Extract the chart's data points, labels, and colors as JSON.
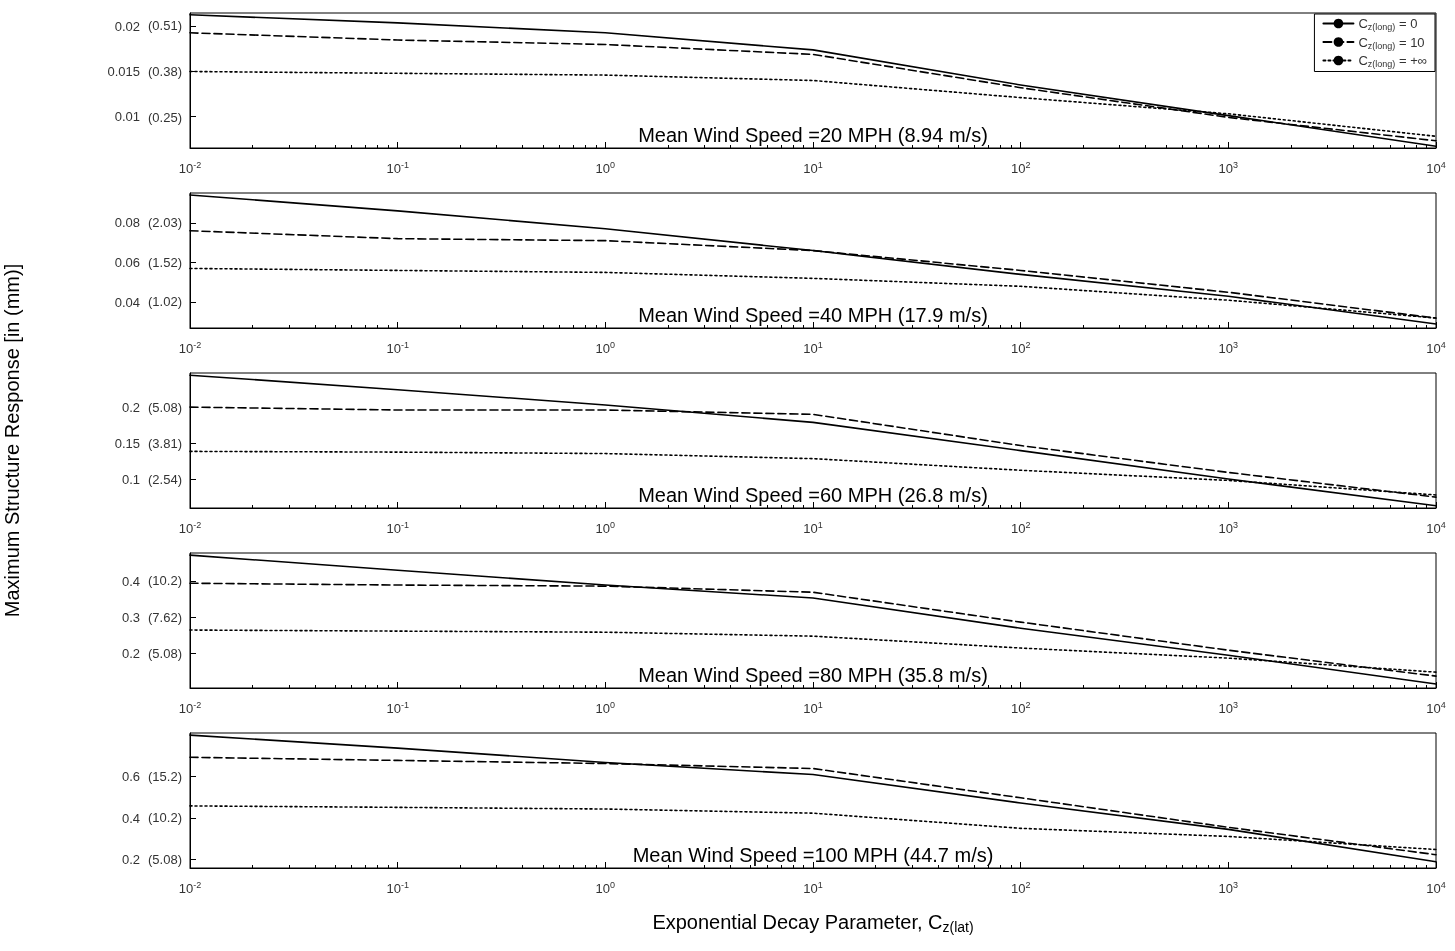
{
  "chart_data": [
    {
      "type": "line",
      "x": [
        0.01,
        0.1,
        1,
        10,
        100,
        1000,
        10000
      ],
      "xlim": [
        0.01,
        10000
      ],
      "xticks": [
        {
          "value": 0.01,
          "label": "10$^{-2}$"
        },
        {
          "value": 0.1,
          "label": "10$^{-1}$"
        },
        {
          "value": 1,
          "label": "10$^{0}$"
        },
        {
          "value": 10,
          "label": "10$^{1}$"
        },
        {
          "value": 100,
          "label": "10$^{2}$"
        },
        {
          "value": 1000,
          "label": "10$^{3}$"
        },
        {
          "value": 10000,
          "label": "10$^{4}$"
        }
      ],
      "log": "x",
      "ylim": [
        0.0065,
        0.0215
      ],
      "yticks": [
        0.01,
        0.015,
        0.02
      ],
      "y2lim": [
        0.165,
        0.546
      ],
      "y2ticks": [
        {
          "value": 0.25,
          "label": "(0.25)"
        },
        {
          "value": 0.38,
          "label": "(0.38)"
        },
        {
          "value": 0.51,
          "label": "(0.51)"
        }
      ],
      "grid": false,
      "marker": "none",
      "legend": "top right",
      "annotations": [
        "Mean Wind Speed =20 MPH (8.94 m/s)"
      ],
      "series": [
        {
          "name": "C$_{z(long)}$ = 0",
          "color": "#000000",
          "line_style": "solid",
          "values": [
            0.0213,
            0.0204,
            0.0193,
            0.0174,
            0.0135,
            0.0101,
            0.0067
          ]
        },
        {
          "name": "C$_{z(long)}$ = 10",
          "color": "#000000",
          "line_style": "dashed",
          "values": [
            0.0193,
            0.0185,
            0.018,
            0.0169,
            0.0132,
            0.0099,
            0.0073
          ]
        },
        {
          "name": "C$_{z(long)}$ = +∞",
          "color": "#000000",
          "line_style": "dotted",
          "values": [
            0.015,
            0.0148,
            0.0146,
            0.014,
            0.0121,
            0.0103,
            0.0078
          ]
        }
      ]
    },
    {
      "type": "line",
      "x": [
        0.01,
        0.1,
        1,
        10,
        100,
        1000,
        10000
      ],
      "xlim": [
        0.01,
        10000
      ],
      "xticks": [
        {
          "value": 0.01,
          "label": "10$^{-2}$"
        },
        {
          "value": 0.1,
          "label": "10$^{-1}$"
        },
        {
          "value": 1,
          "label": "10$^{0}$"
        },
        {
          "value": 10,
          "label": "10$^{1}$"
        },
        {
          "value": 100,
          "label": "10$^{2}$"
        },
        {
          "value": 1000,
          "label": "10$^{3}$"
        },
        {
          "value": 10000,
          "label": "10$^{4}$"
        }
      ],
      "log": "x",
      "ylim": [
        0.027,
        0.095
      ],
      "yticks": [
        0.04,
        0.06,
        0.08
      ],
      "y2lim": [
        0.686,
        2.413
      ],
      "y2ticks": [
        {
          "value": 1.02,
          "label": "(1.02)"
        },
        {
          "value": 1.52,
          "label": "(1.52)"
        },
        {
          "value": 2.03,
          "label": "(2.03)"
        }
      ],
      "grid": false,
      "marker": "none",
      "annotations": [
        "Mean Wind Speed =40 MPH (17.9 m/s)"
      ],
      "series": [
        {
          "color": "#000000",
          "line_style": "solid",
          "values": [
            0.094,
            0.086,
            0.077,
            0.066,
            0.054,
            0.043,
            0.029
          ]
        },
        {
          "color": "#000000",
          "line_style": "dashed",
          "values": [
            0.076,
            0.072,
            0.071,
            0.066,
            0.056,
            0.045,
            0.032
          ]
        },
        {
          "color": "#000000",
          "line_style": "dotted",
          "values": [
            0.057,
            0.056,
            0.055,
            0.052,
            0.048,
            0.041,
            0.032
          ]
        }
      ]
    },
    {
      "type": "line",
      "x": [
        0.01,
        0.1,
        1,
        10,
        100,
        1000,
        10000
      ],
      "xlim": [
        0.01,
        10000
      ],
      "xticks": [
        {
          "value": 0.01,
          "label": "10$^{-2}$"
        },
        {
          "value": 0.1,
          "label": "10$^{-1}$"
        },
        {
          "value": 1,
          "label": "10$^{0}$"
        },
        {
          "value": 10,
          "label": "10$^{1}$"
        },
        {
          "value": 100,
          "label": "10$^{2}$"
        },
        {
          "value": 1000,
          "label": "10$^{3}$"
        },
        {
          "value": 10000,
          "label": "10$^{4}$"
        }
      ],
      "log": "x",
      "ylim": [
        0.061,
        0.247
      ],
      "yticks": [
        0.1,
        0.15,
        0.2
      ],
      "y2lim": [
        1.549,
        6.274
      ],
      "y2ticks": [
        {
          "value": 2.54,
          "label": "(2.54)"
        },
        {
          "value": 3.81,
          "label": "(3.81)"
        },
        {
          "value": 5.08,
          "label": "(5.08)"
        }
      ],
      "grid": false,
      "marker": "none",
      "ylabel": "Maximum Structure Response [in (mm)]",
      "annotations": [
        "Mean Wind Speed =60 MPH (26.8 m/s)"
      ],
      "series": [
        {
          "color": "#000000",
          "line_style": "solid",
          "values": [
            0.244,
            0.224,
            0.203,
            0.179,
            0.14,
            0.101,
            0.064
          ]
        },
        {
          "color": "#000000",
          "line_style": "dashed",
          "values": [
            0.2,
            0.196,
            0.196,
            0.19,
            0.147,
            0.11,
            0.076
          ]
        },
        {
          "color": "#000000",
          "line_style": "dotted",
          "values": [
            0.139,
            0.138,
            0.136,
            0.129,
            0.113,
            0.099,
            0.079
          ]
        }
      ]
    },
    {
      "type": "line",
      "x": [
        0.01,
        0.1,
        1,
        10,
        100,
        1000,
        10000
      ],
      "xlim": [
        0.01,
        10000
      ],
      "xticks": [
        {
          "value": 0.01,
          "label": "10$^{-2}$"
        },
        {
          "value": 0.1,
          "label": "10$^{-1}$"
        },
        {
          "value": 1,
          "label": "10$^{0}$"
        },
        {
          "value": 10,
          "label": "10$^{1}$"
        },
        {
          "value": 100,
          "label": "10$^{2}$"
        },
        {
          "value": 1000,
          "label": "10$^{3}$"
        },
        {
          "value": 10000,
          "label": "10$^{4}$"
        }
      ],
      "log": "x",
      "ylim": [
        0.103,
        0.478
      ],
      "yticks": [
        0.2,
        0.3,
        0.4
      ],
      "y2lim": [
        2.616,
        12.141
      ],
      "y2ticks": [
        {
          "value": 5.08,
          "label": "(5.08)"
        },
        {
          "value": 7.62,
          "label": "(7.62)"
        },
        {
          "value": 10.2,
          "label": "(10.2)"
        }
      ],
      "grid": false,
      "marker": "none",
      "annotations": [
        "Mean Wind Speed =80 MPH (35.8 m/s)"
      ],
      "series": [
        {
          "color": "#000000",
          "line_style": "solid",
          "values": [
            0.472,
            0.43,
            0.389,
            0.353,
            0.269,
            0.194,
            0.114
          ]
        },
        {
          "color": "#000000",
          "line_style": "dashed",
          "values": [
            0.394,
            0.389,
            0.386,
            0.369,
            0.286,
            0.208,
            0.136
          ]
        },
        {
          "color": "#000000",
          "line_style": "dotted",
          "values": [
            0.264,
            0.261,
            0.258,
            0.247,
            0.214,
            0.186,
            0.147
          ]
        }
      ]
    },
    {
      "type": "line",
      "x": [
        0.01,
        0.1,
        1,
        10,
        100,
        1000,
        10000
      ],
      "xlim": [
        0.01,
        10000
      ],
      "xticks": [
        {
          "value": 0.01,
          "label": "10$^{-2}$"
        },
        {
          "value": 0.1,
          "label": "10$^{-1}$"
        },
        {
          "value": 1,
          "label": "10$^{0}$"
        },
        {
          "value": 10,
          "label": "10$^{1}$"
        },
        {
          "value": 100,
          "label": "10$^{2}$"
        },
        {
          "value": 1000,
          "label": "10$^{3}$"
        },
        {
          "value": 10000,
          "label": "10$^{4}$"
        }
      ],
      "log": "x",
      "ylim": [
        0.16,
        0.81
      ],
      "yticks": [
        0.2,
        0.4,
        0.6
      ],
      "y2lim": [
        4.064,
        20.574
      ],
      "y2ticks": [
        {
          "value": 5.08,
          "label": "(5.08)"
        },
        {
          "value": 10.2,
          "label": "(10.2)"
        },
        {
          "value": 15.2,
          "label": "(15.2)"
        }
      ],
      "grid": false,
      "marker": "none",
      "xlabel": "Exponential Decay Parameter, C$_{z(lat)}$",
      "annotations": [
        "Mean Wind Speed =100 MPH (44.7 m/s)"
      ],
      "series": [
        {
          "color": "#000000",
          "line_style": "solid",
          "values": [
            0.8,
            0.737,
            0.668,
            0.61,
            0.473,
            0.346,
            0.19
          ]
        },
        {
          "color": "#000000",
          "line_style": "dashed",
          "values": [
            0.693,
            0.678,
            0.663,
            0.639,
            0.498,
            0.356,
            0.224
          ]
        },
        {
          "color": "#000000",
          "line_style": "dotted",
          "values": [
            0.459,
            0.452,
            0.444,
            0.424,
            0.351,
            0.312,
            0.249
          ]
        }
      ]
    }
  ]
}
